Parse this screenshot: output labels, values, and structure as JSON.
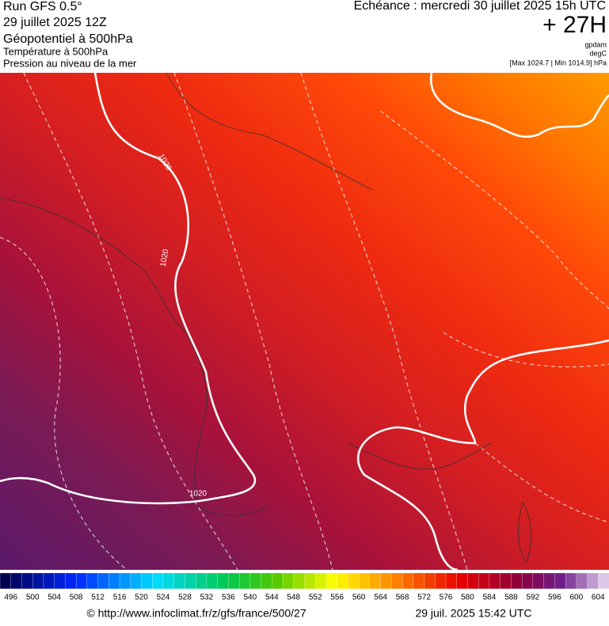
{
  "header": {
    "run": "Run GFS 0.5°",
    "date": "29 juillet 2025 12Z",
    "field": "Géopotentiel à 500hPa",
    "temperature": "Température à 500hPa",
    "pressure": "Pression au niveau de la mer",
    "echeance": "Echéance : mercredi 30 juillet 2025 15h UTC",
    "lead": "+ 27H",
    "unit_geo": "gpdam",
    "unit_temp": "degC",
    "pressure_range": "[Max 1024.7 | Min 1014.9] hPa"
  },
  "map": {
    "contour_labels": [
      "1020",
      "1020",
      "1020"
    ]
  },
  "colorbar": {
    "labels": [
      496,
      500,
      504,
      508,
      512,
      516,
      520,
      524,
      528,
      532,
      536,
      540,
      544,
      548,
      552,
      556,
      560,
      564,
      568,
      572,
      576,
      580,
      584,
      588,
      592,
      596,
      600,
      604
    ]
  },
  "footer": {
    "url": "© http://www.infoclimat.fr/z/gfs/france/500/27",
    "timestamp": "29 juil. 2025 15:42 UTC"
  }
}
